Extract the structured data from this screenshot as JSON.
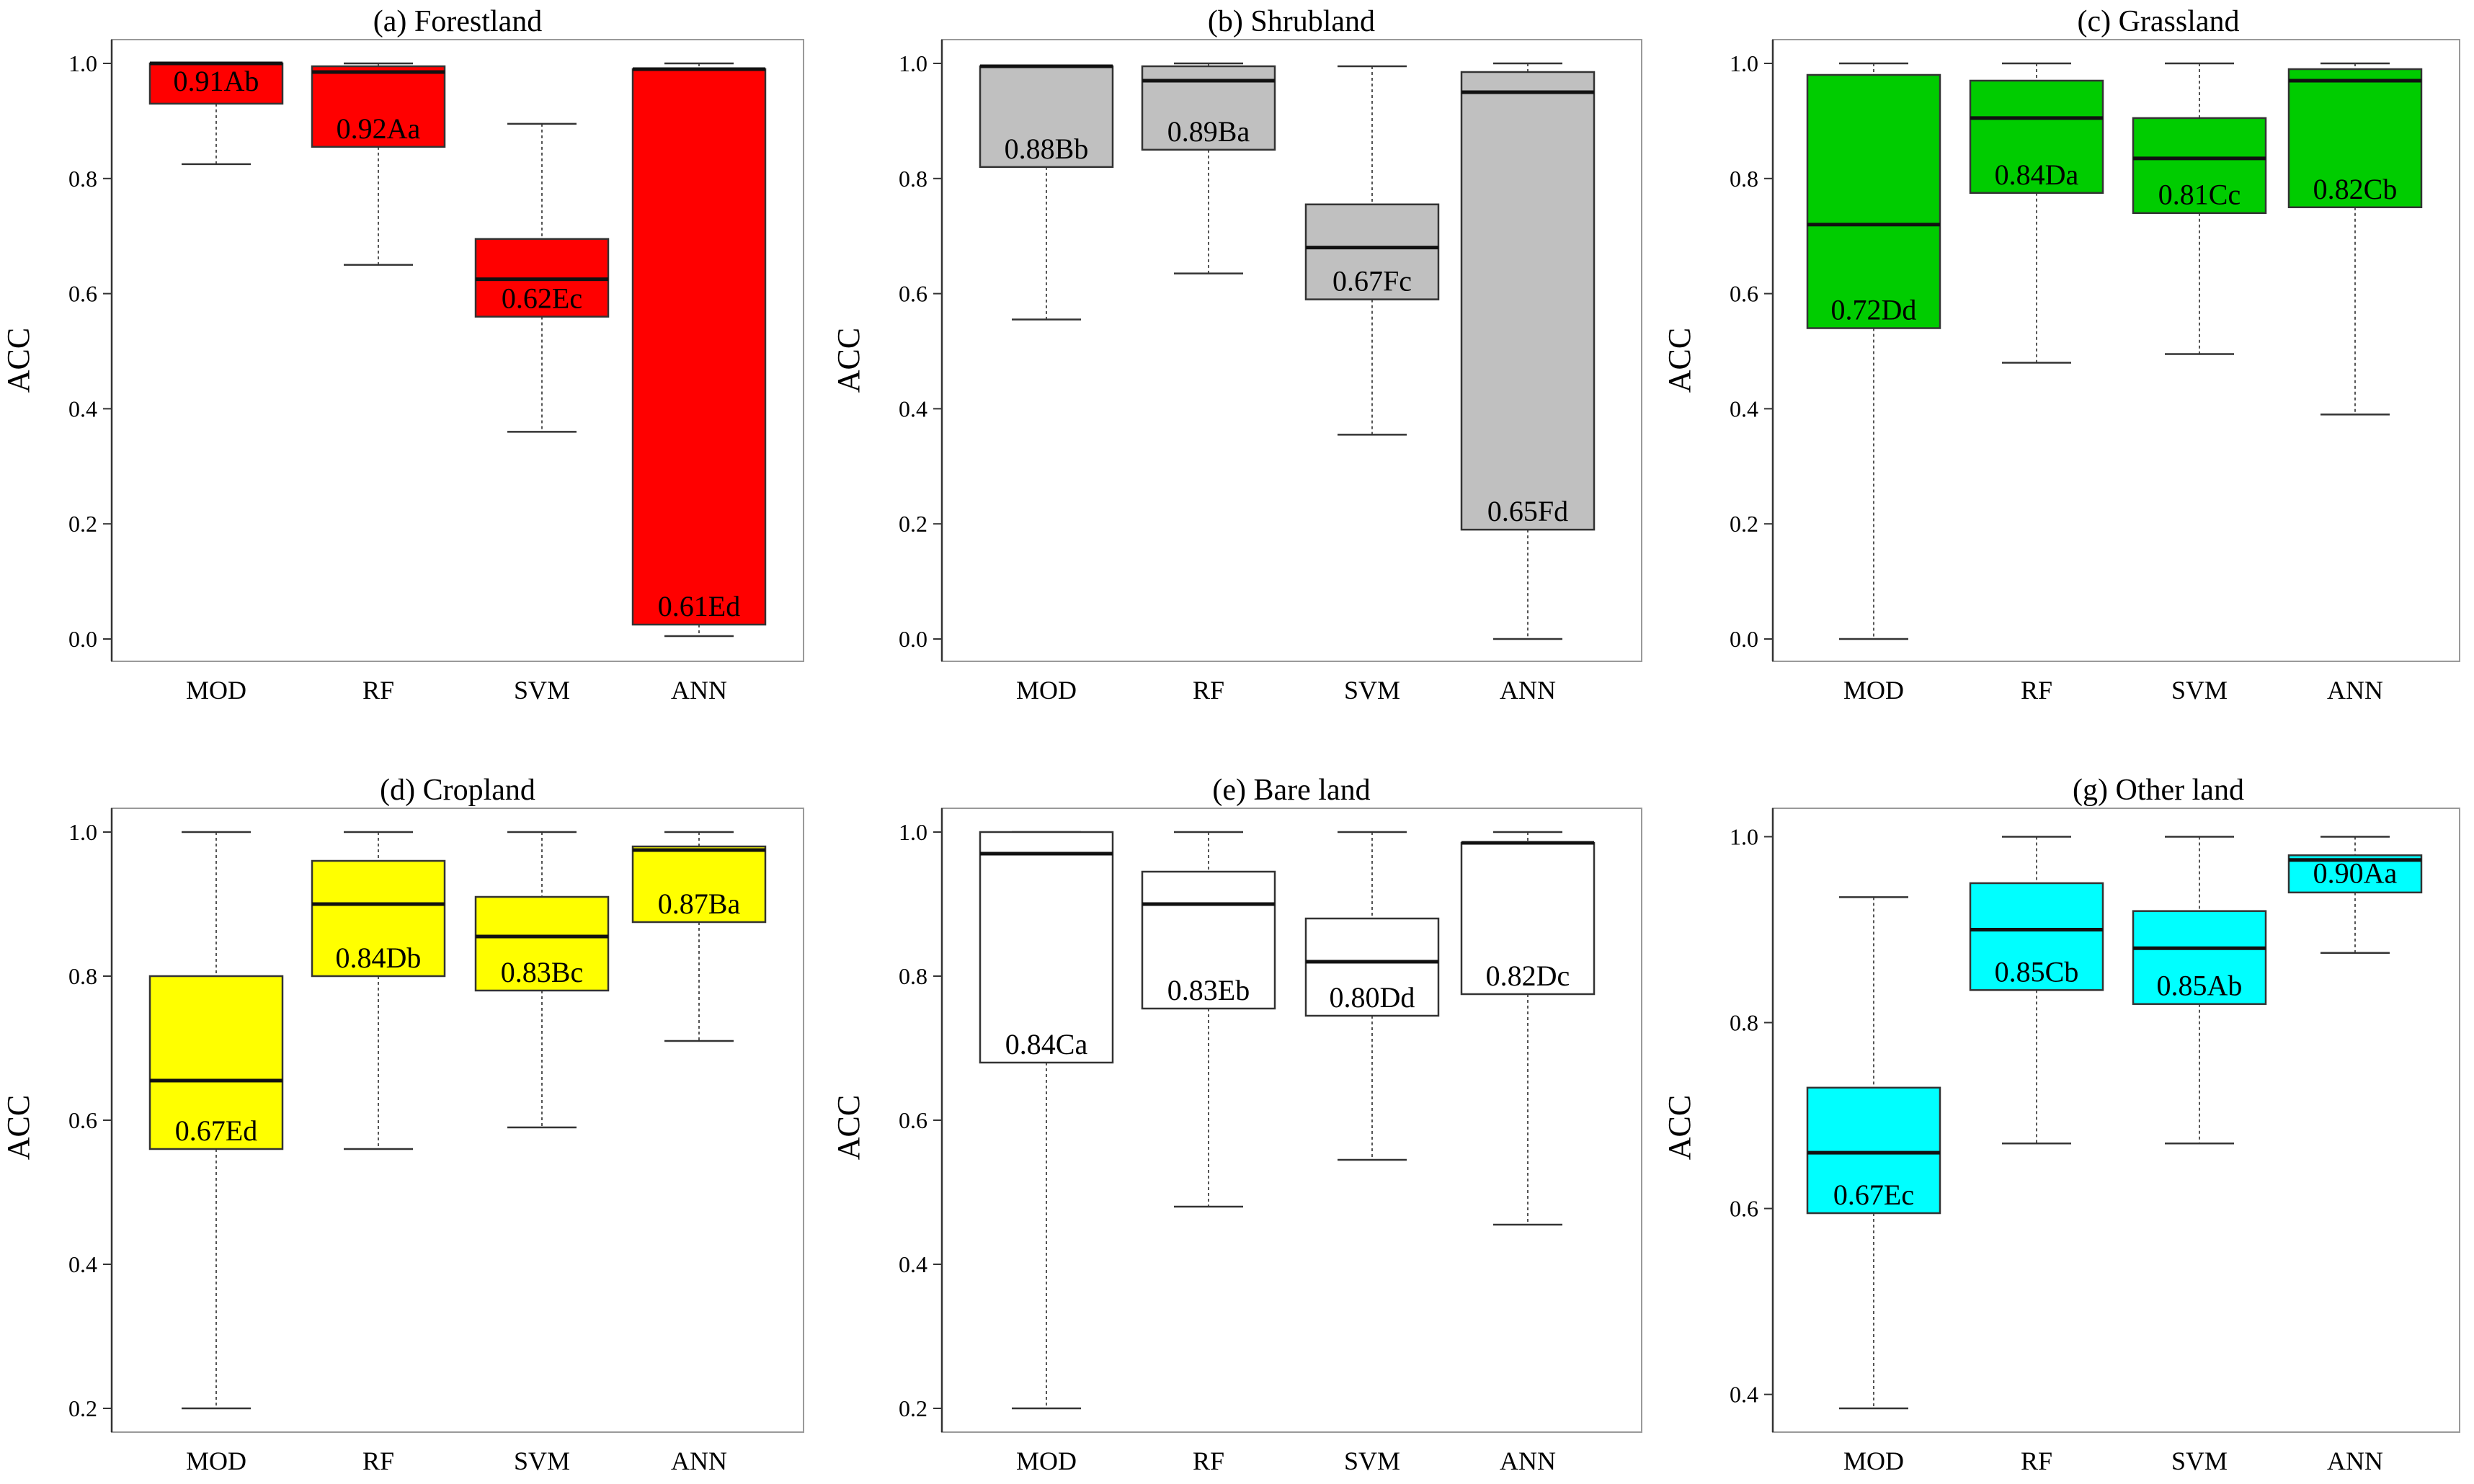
{
  "chart_data": [
    {
      "type": "boxplot",
      "title": "(a) Forestland",
      "xlabel": "",
      "ylabel": "ACC",
      "ylim": [
        0,
        1
      ],
      "yticks": [
        "0.0",
        "0.2",
        "0.4",
        "0.6",
        "0.8",
        "1.0"
      ],
      "fill_color": "#ff0000",
      "categories": [
        "MOD",
        "RF",
        "SVM",
        "ANN"
      ],
      "boxes": [
        {
          "category": "MOD",
          "whisker_low": 0.825,
          "q1": 0.93,
          "median": 1.0,
          "q3": 1.0,
          "whisker_high": 1.0,
          "label": "0.91Ab"
        },
        {
          "category": "RF",
          "whisker_low": 0.65,
          "q1": 0.855,
          "median": 0.985,
          "q3": 0.995,
          "whisker_high": 1.0,
          "label": "0.92Aa"
        },
        {
          "category": "SVM",
          "whisker_low": 0.36,
          "q1": 0.56,
          "median": 0.625,
          "q3": 0.695,
          "whisker_high": 0.895,
          "label": "0.62Ec"
        },
        {
          "category": "ANN",
          "whisker_low": 0.005,
          "q1": 0.025,
          "median": 0.99,
          "q3": 0.99,
          "whisker_high": 1.0,
          "label": "0.61Ed"
        }
      ]
    },
    {
      "type": "boxplot",
      "title": "(b) Shrubland",
      "xlabel": "",
      "ylabel": "ACC",
      "ylim": [
        0,
        1
      ],
      "yticks": [
        "0.0",
        "0.2",
        "0.4",
        "0.6",
        "0.8",
        "1.0"
      ],
      "fill_color": "#c0c0c0",
      "categories": [
        "MOD",
        "RF",
        "SVM",
        "ANN"
      ],
      "boxes": [
        {
          "category": "MOD",
          "whisker_low": 0.555,
          "q1": 0.82,
          "median": 0.995,
          "q3": 0.995,
          "whisker_high": 0.995,
          "label": "0.88Bb"
        },
        {
          "category": "RF",
          "whisker_low": 0.635,
          "q1": 0.85,
          "median": 0.97,
          "q3": 0.995,
          "whisker_high": 1.0,
          "label": "0.89Ba"
        },
        {
          "category": "SVM",
          "whisker_low": 0.355,
          "q1": 0.59,
          "median": 0.68,
          "q3": 0.755,
          "whisker_high": 0.995,
          "label": "0.67Fc"
        },
        {
          "category": "ANN",
          "whisker_low": 0.0,
          "q1": 0.19,
          "median": 0.95,
          "q3": 0.985,
          "whisker_high": 1.0,
          "label": "0.65Fd"
        }
      ]
    },
    {
      "type": "boxplot",
      "title": "(c) Grassland",
      "xlabel": "",
      "ylabel": "ACC",
      "ylim": [
        0,
        1
      ],
      "yticks": [
        "0.0",
        "0.2",
        "0.4",
        "0.6",
        "0.8",
        "1.0"
      ],
      "fill_color": "#00cc00",
      "categories": [
        "MOD",
        "RF",
        "SVM",
        "ANN"
      ],
      "boxes": [
        {
          "category": "MOD",
          "whisker_low": 0.0,
          "q1": 0.54,
          "median": 0.72,
          "q3": 0.98,
          "whisker_high": 1.0,
          "label": "0.72Dd"
        },
        {
          "category": "RF",
          "whisker_low": 0.48,
          "q1": 0.775,
          "median": 0.905,
          "q3": 0.97,
          "whisker_high": 1.0,
          "label": "0.84Da"
        },
        {
          "category": "SVM",
          "whisker_low": 0.495,
          "q1": 0.74,
          "median": 0.835,
          "q3": 0.905,
          "whisker_high": 1.0,
          "label": "0.81Cc"
        },
        {
          "category": "ANN",
          "whisker_low": 0.39,
          "q1": 0.75,
          "median": 0.97,
          "q3": 0.99,
          "whisker_high": 1.0,
          "label": "0.82Cb"
        }
      ]
    },
    {
      "type": "boxplot",
      "title": "(d) Cropland",
      "xlabel": "",
      "ylabel": "ACC",
      "ylim": [
        0.2,
        1
      ],
      "yticks": [
        "0.2",
        "0.4",
        "0.6",
        "0.8",
        "1.0"
      ],
      "fill_color": "#ffff00",
      "categories": [
        "MOD",
        "RF",
        "SVM",
        "ANN"
      ],
      "boxes": [
        {
          "category": "MOD",
          "whisker_low": 0.2,
          "q1": 0.56,
          "median": 0.655,
          "q3": 0.8,
          "whisker_high": 1.0,
          "label": "0.67Ed"
        },
        {
          "category": "RF",
          "whisker_low": 0.56,
          "q1": 0.8,
          "median": 0.9,
          "q3": 0.96,
          "whisker_high": 1.0,
          "label": "0.84Db"
        },
        {
          "category": "SVM",
          "whisker_low": 0.59,
          "q1": 0.78,
          "median": 0.855,
          "q3": 0.91,
          "whisker_high": 1.0,
          "label": "0.83Bc"
        },
        {
          "category": "ANN",
          "whisker_low": 0.71,
          "q1": 0.875,
          "median": 0.975,
          "q3": 0.98,
          "whisker_high": 1.0,
          "label": "0.87Ba"
        }
      ]
    },
    {
      "type": "boxplot",
      "title": "(e) Bare land",
      "xlabel": "",
      "ylabel": "ACC",
      "ylim": [
        0.2,
        1
      ],
      "yticks": [
        "0.2",
        "0.4",
        "0.6",
        "0.8",
        "1.0"
      ],
      "fill_color": "#ffffff",
      "categories": [
        "MOD",
        "RF",
        "SVM",
        "ANN"
      ],
      "boxes": [
        {
          "category": "MOD",
          "whisker_low": 0.2,
          "q1": 0.68,
          "median": 0.97,
          "q3": 1.0,
          "whisker_high": 1.0,
          "label": "0.84Ca"
        },
        {
          "category": "RF",
          "whisker_low": 0.48,
          "q1": 0.755,
          "median": 0.9,
          "q3": 0.945,
          "whisker_high": 1.0,
          "label": "0.83Eb"
        },
        {
          "category": "SVM",
          "whisker_low": 0.545,
          "q1": 0.745,
          "median": 0.82,
          "q3": 0.88,
          "whisker_high": 1.0,
          "label": "0.80Dd"
        },
        {
          "category": "ANN",
          "whisker_low": 0.455,
          "q1": 0.775,
          "median": 0.985,
          "q3": 0.985,
          "whisker_high": 1.0,
          "label": "0.82Dc"
        }
      ]
    },
    {
      "type": "boxplot",
      "title": "(g) Other land",
      "xlabel": "",
      "ylabel": "ACC",
      "ylim": [
        0.385,
        1.005
      ],
      "yticks": [
        "0.4",
        "0.6",
        "0.8",
        "1.0"
      ],
      "fill_color": "#00ffff",
      "categories": [
        "MOD",
        "RF",
        "SVM",
        "ANN"
      ],
      "boxes": [
        {
          "category": "MOD",
          "whisker_low": 0.385,
          "q1": 0.595,
          "median": 0.66,
          "q3": 0.73,
          "whisker_high": 0.935,
          "label": "0.67Ec"
        },
        {
          "category": "RF",
          "whisker_low": 0.67,
          "q1": 0.835,
          "median": 0.9,
          "q3": 0.95,
          "whisker_high": 1.0,
          "label": "0.85Cb"
        },
        {
          "category": "SVM",
          "whisker_low": 0.67,
          "q1": 0.82,
          "median": 0.88,
          "q3": 0.92,
          "whisker_high": 1.0,
          "label": "0.85Ab"
        },
        {
          "category": "ANN",
          "whisker_low": 0.875,
          "q1": 0.94,
          "median": 0.975,
          "q3": 0.98,
          "whisker_high": 1.0,
          "label": "0.90Aa"
        }
      ]
    }
  ]
}
